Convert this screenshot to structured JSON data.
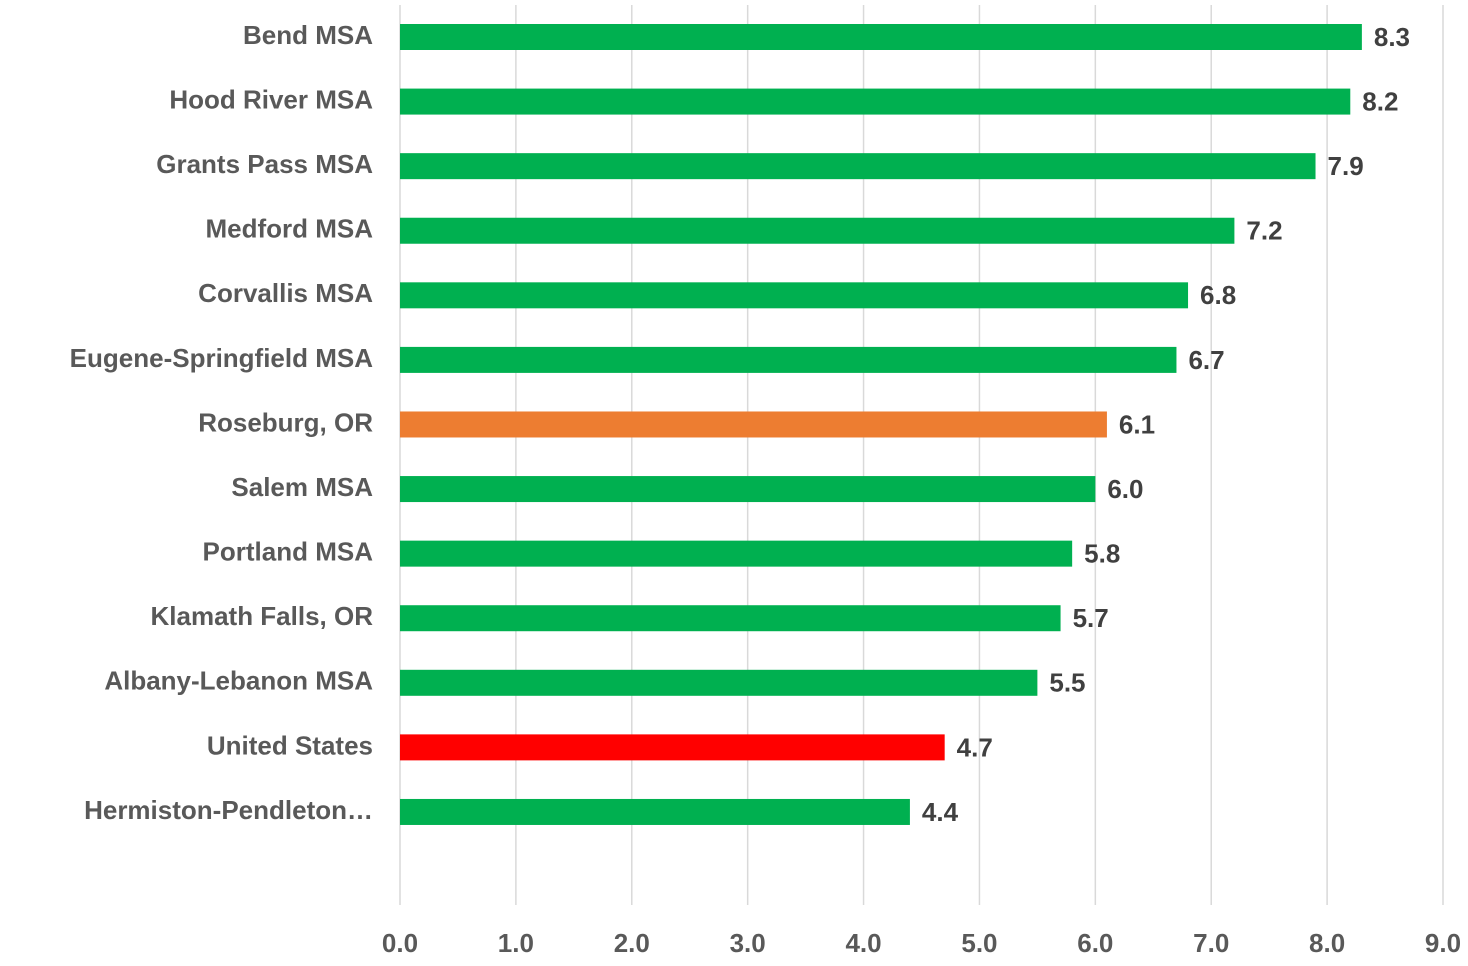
{
  "chart_data": {
    "type": "barh",
    "categories": [
      "Bend MSA",
      "Hood River MSA",
      "Grants Pass MSA",
      "Medford MSA",
      "Corvallis MSA",
      "Eugene-Springfield MSA",
      "Roseburg, OR",
      "Salem MSA",
      "Portland MSA",
      "Klamath Falls, OR",
      "Albany-Lebanon MSA",
      "United States",
      "Hermiston-Pendleton…"
    ],
    "values": [
      8.3,
      8.2,
      7.9,
      7.2,
      6.8,
      6.7,
      6.1,
      6.0,
      5.8,
      5.7,
      5.5,
      4.7,
      4.4
    ],
    "value_labels": [
      "8.3",
      "8.2",
      "7.9",
      "7.2",
      "6.8",
      "6.7",
      "6.1",
      "6.0",
      "5.8",
      "5.7",
      "5.5",
      "4.7",
      "4.4"
    ],
    "colors": [
      "#00b050",
      "#00b050",
      "#00b050",
      "#00b050",
      "#00b050",
      "#00b050",
      "#ed7d31",
      "#00b050",
      "#00b050",
      "#00b050",
      "#00b050",
      "#ff0000",
      "#00b050"
    ],
    "xlim": [
      0,
      9
    ],
    "xticks": [
      {
        "value": 0,
        "label": "0.0"
      },
      {
        "value": 1,
        "label": "1.0"
      },
      {
        "value": 2,
        "label": "2.0"
      },
      {
        "value": 3,
        "label": "3.0"
      },
      {
        "value": 4,
        "label": "4.0"
      },
      {
        "value": 5,
        "label": "5.0"
      },
      {
        "value": 6,
        "label": "6.0"
      },
      {
        "value": 7,
        "label": "7.0"
      },
      {
        "value": 8,
        "label": "8.0"
      },
      {
        "value": 9,
        "label": "9.0"
      }
    ],
    "grid": true
  }
}
